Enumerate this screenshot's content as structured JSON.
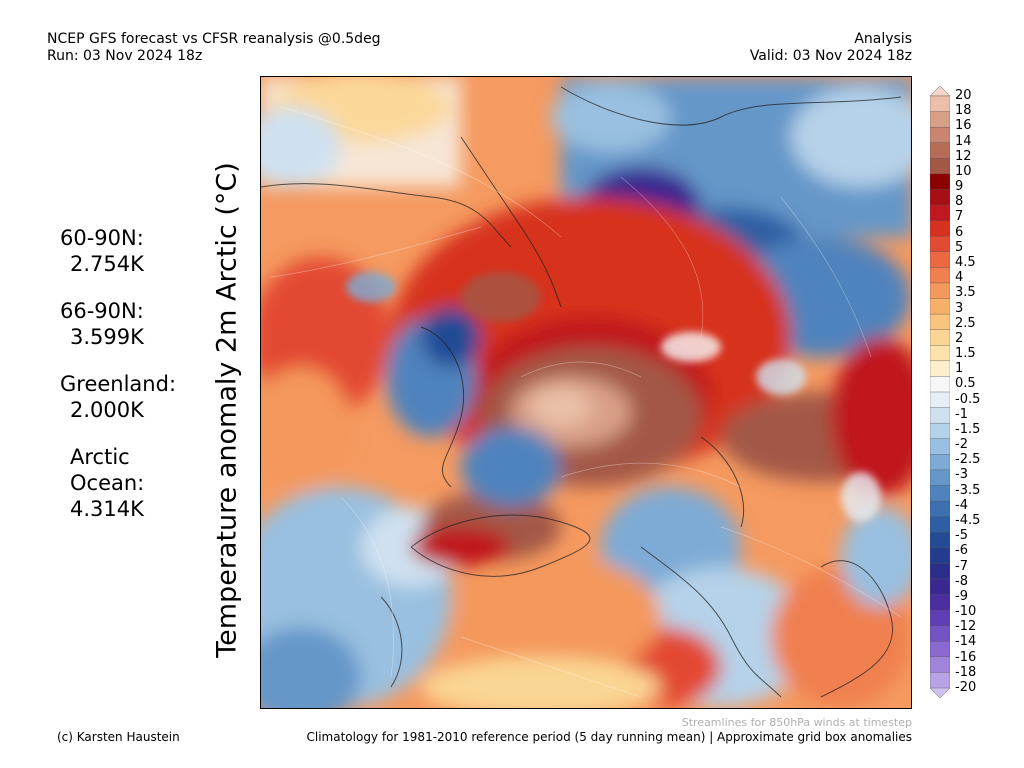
{
  "header": {
    "title": "NCEP GFS forecast vs CFSR reanalysis @0.5deg",
    "run": "Run: 03 Nov 2024 18z",
    "mode": "Analysis",
    "valid": "Valid: 03 Nov 2024 18z"
  },
  "stats": [
    {
      "name": "60-90N:",
      "value": "2.754K"
    },
    {
      "name": "66-90N:",
      "value": "3.599K"
    },
    {
      "name": "Greenland:",
      "value": "2.000K"
    },
    {
      "name_lines": [
        "Arctic",
        "Ocean:"
      ],
      "value": "4.314K"
    }
  ],
  "y_label": "Temperature anomaly 2m Arctic (°C)",
  "colorbar": {
    "levels": [
      "20",
      "18",
      "16",
      "14",
      "12",
      "10",
      "9",
      "8",
      "7",
      "6",
      "5",
      "4.5",
      "4",
      "3.5",
      "3",
      "2.5",
      "2",
      "1.5",
      "1",
      "0.5",
      "-0.5",
      "-1",
      "-1.5",
      "-2",
      "-2.5",
      "-3",
      "-3.5",
      "-4",
      "-4.5",
      "-5",
      "-6",
      "-7",
      "-8",
      "-9",
      "-10",
      "-12",
      "-14",
      "-16",
      "-18",
      "-20"
    ],
    "colors": [
      "#f7d5c8",
      "#ebbfa9",
      "#d9a088",
      "#c98570",
      "#b66c56",
      "#a35846",
      "#8b0000",
      "#a50f15",
      "#c0181e",
      "#d7301f",
      "#e34a33",
      "#ec6840",
      "#f08050",
      "#f4985c",
      "#f7b06a",
      "#f9c47e",
      "#fbd593",
      "#fde3ab",
      "#fef0cc",
      "#f7f7f7",
      "#e6eef6",
      "#cfe1f0",
      "#b5d2e9",
      "#99c0e0",
      "#7eabd5",
      "#6597c9",
      "#4f83bd",
      "#3d70b0",
      "#2e5ea3",
      "#244c96",
      "#233c8e",
      "#2a2e8a",
      "#3a2890",
      "#4b2ea0",
      "#5f3fb5",
      "#7454c4",
      "#8a6ad1",
      "#a084dc",
      "#b8a2e6",
      "#cfc0ef"
    ]
  },
  "notes": {
    "streamlines": "Streamlines for 850hPa winds at timestep",
    "credit": "(c) Karsten Haustein",
    "climatology": "Climatology for 1981-2010 reference period (5 day running mean) | Approximate grid box anomalies"
  }
}
